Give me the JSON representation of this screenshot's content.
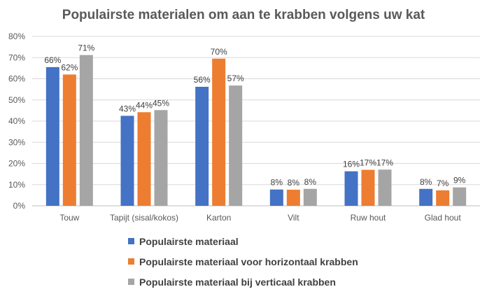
{
  "chart_data": {
    "type": "bar",
    "title": "Populairste materialen om aan te krabben volgens uw kat",
    "xlabel": "",
    "ylabel": "",
    "ylim": [
      0,
      80
    ],
    "yticks": [
      0,
      10,
      20,
      30,
      40,
      50,
      60,
      70,
      80
    ],
    "ytick_labels": [
      "0%",
      "10%",
      "20%",
      "30%",
      "40%",
      "50%",
      "60%",
      "70%",
      "80%"
    ],
    "categories": [
      "Touw",
      "Tapijt (sisal/kokos)",
      "Karton",
      "Vilt",
      "Ruw hout",
      "Glad hout"
    ],
    "series": [
      {
        "name": "Populairste materiaal",
        "color": "#4472C4",
        "values": [
          65.5,
          42.5,
          56.2,
          7.7,
          16.3,
          8.0
        ],
        "labels": [
          "66%",
          "43%",
          "56%",
          "8%",
          "16%",
          "8%"
        ]
      },
      {
        "name": "Populairste materiaal voor horizontaal krabben",
        "color": "#ED7D31",
        "values": [
          62.0,
          44.2,
          69.5,
          7.6,
          17.0,
          7.3
        ],
        "labels": [
          "62%",
          "44%",
          "70%",
          "8%",
          "17%",
          "7%"
        ]
      },
      {
        "name": "Populairste materiaal bij verticaal krabben",
        "color": "#A5A5A5",
        "values": [
          71.2,
          45.2,
          56.8,
          8.0,
          17.1,
          8.7
        ],
        "labels": [
          "71%",
          "45%",
          "57%",
          "8%",
          "17%",
          "9%"
        ]
      }
    ],
    "grid": true,
    "legend_position": "bottom",
    "gridline_color": "#D9D9D9",
    "axis_color": "#BFBFBF"
  }
}
